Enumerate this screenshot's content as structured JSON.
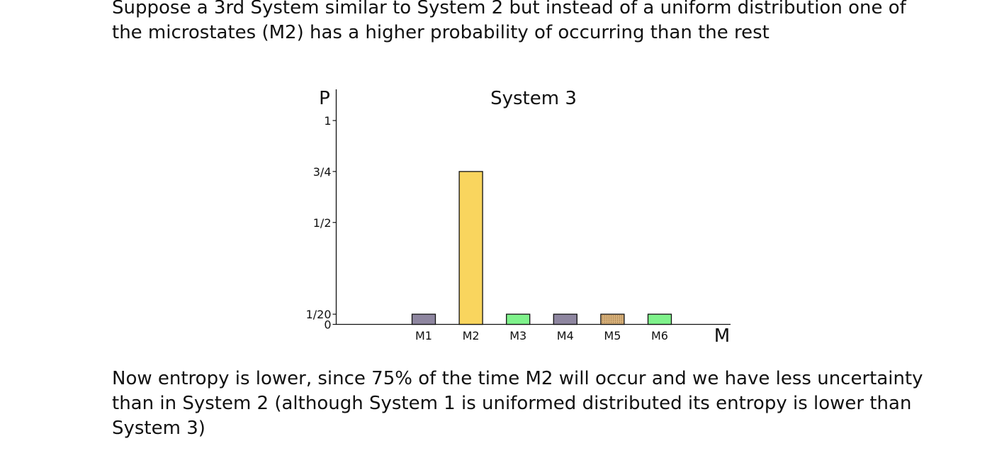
{
  "intro_text": "Suppose a 3rd System similar to System 2 but instead of a uniform distribution one of the microstates (M2) has a higher probability of occurring than the rest",
  "outro_text": "Now entropy is lower, since 75% of the time M2 will occur and we have less uncertainty than in System 2 (although System 1 is uniformed distributed its entropy is lower than System 3)",
  "chart_data": {
    "type": "bar",
    "title": "System 3",
    "xlabel": "M",
    "ylabel": "P",
    "ylim": [
      0,
      1.15
    ],
    "grid": false,
    "yticks": [
      {
        "value": 0,
        "label": "0"
      },
      {
        "value": 0.05,
        "label": "1/20"
      },
      {
        "value": 0.5,
        "label": "1/2"
      },
      {
        "value": 0.75,
        "label": "3/4"
      },
      {
        "value": 1,
        "label": "1"
      }
    ],
    "categories": [
      "M1",
      "M2",
      "M3",
      "M4",
      "M5",
      "M6"
    ],
    "values": [
      0.05,
      0.75,
      0.05,
      0.05,
      0.05,
      0.05
    ],
    "colors": [
      "#8e86a0",
      "#f9d55e",
      "#7ff28b",
      "#8e86a0",
      "#d8b07a",
      "#7ff28b"
    ]
  }
}
